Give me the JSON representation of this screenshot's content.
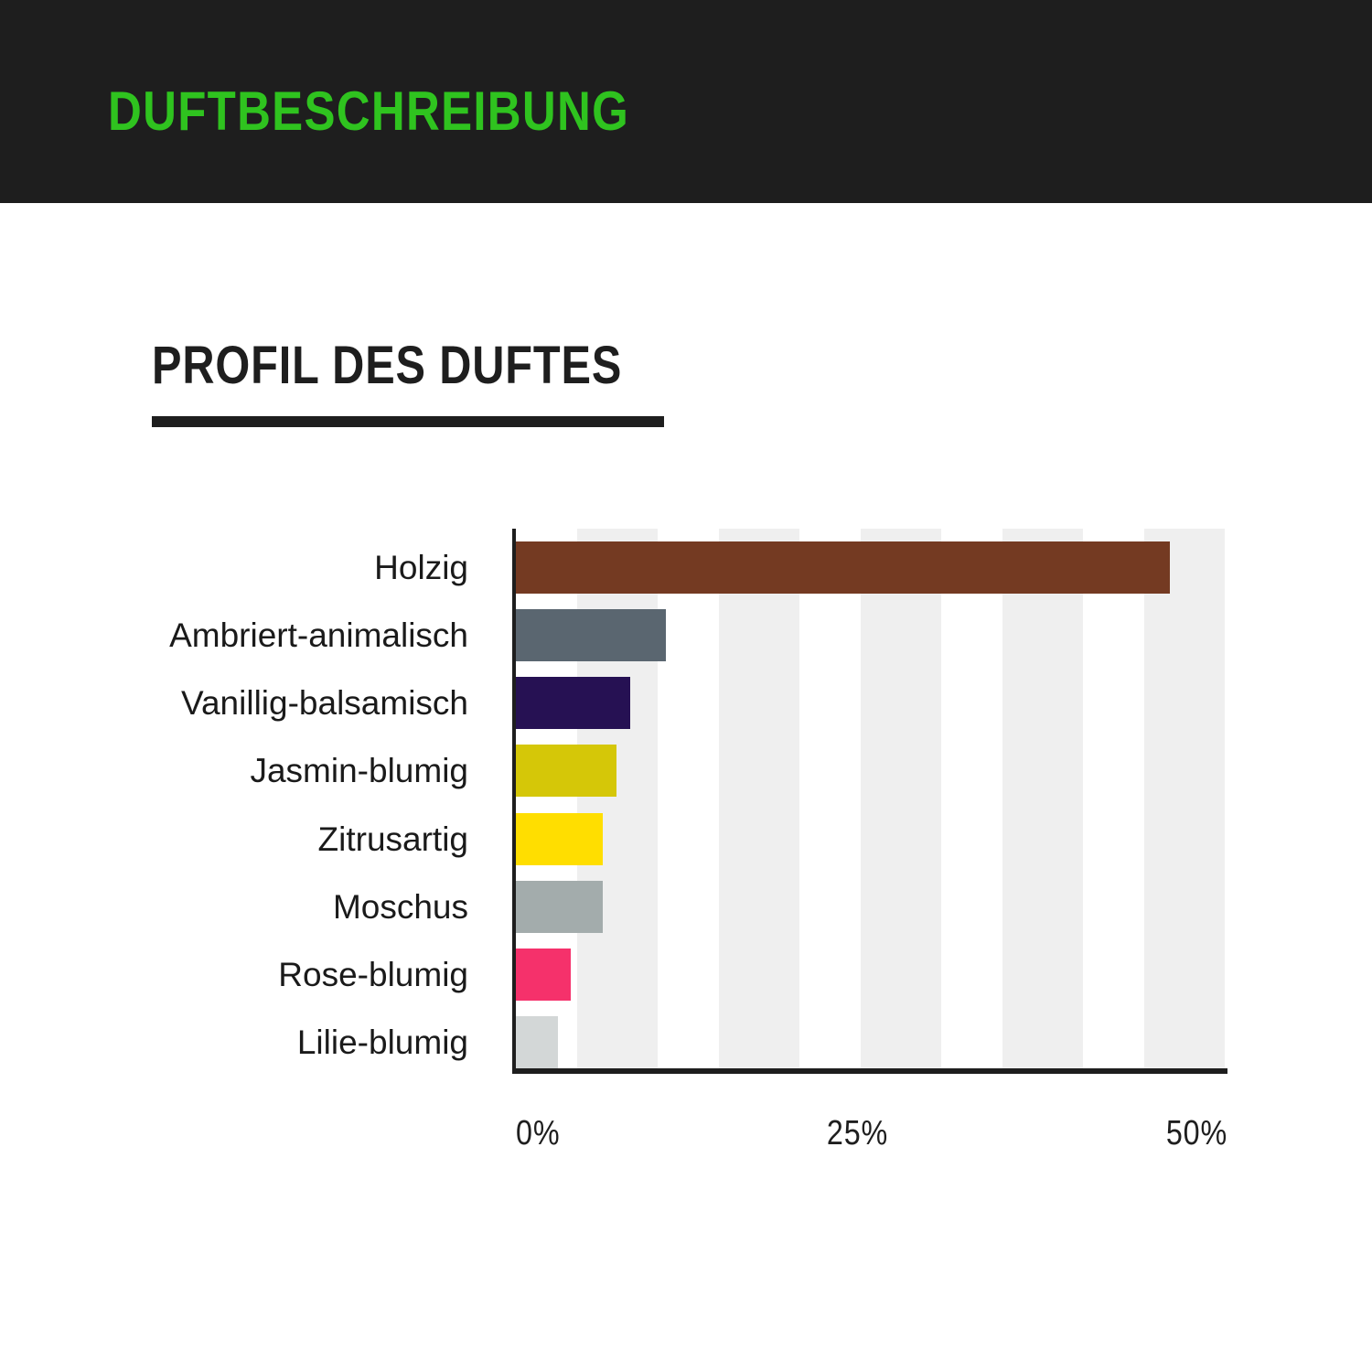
{
  "header": {
    "label": "DUFTBESCHREIBUNG",
    "bg_color": "#1e1e1e",
    "accent_color": "#2fc31f"
  },
  "section": {
    "title": "PROFIL DES DUFTES",
    "title_color": "#1e1e1e"
  },
  "chart_data": {
    "type": "bar",
    "orientation": "horizontal",
    "title": "PROFIL DES DUFTES",
    "categories": [
      "Holzig",
      "Ambriert-animalisch",
      "Vanillig-balsamisch",
      "Jasmin-blumig",
      "Zitrusartig",
      "Moschus",
      "Rose-blumig",
      "Lilie-blumig"
    ],
    "values": [
      48,
      11,
      8.4,
      7.4,
      6.4,
      6.4,
      4,
      3.1
    ],
    "unit": "%",
    "colors": [
      "#743a22",
      "#5a6670",
      "#261153",
      "#d5c708",
      "#ffde00",
      "#a3acac",
      "#f5316b",
      "#d3d7d7"
    ],
    "x_ticks": [
      "0%",
      "25%",
      "50%"
    ],
    "xlim": [
      0,
      52.2
    ],
    "xlabel": "",
    "ylabel": "",
    "legend": "none",
    "grid": "vertical-stripes",
    "stripe_color": "#efefef",
    "axis_color": "#1e1e1e"
  }
}
